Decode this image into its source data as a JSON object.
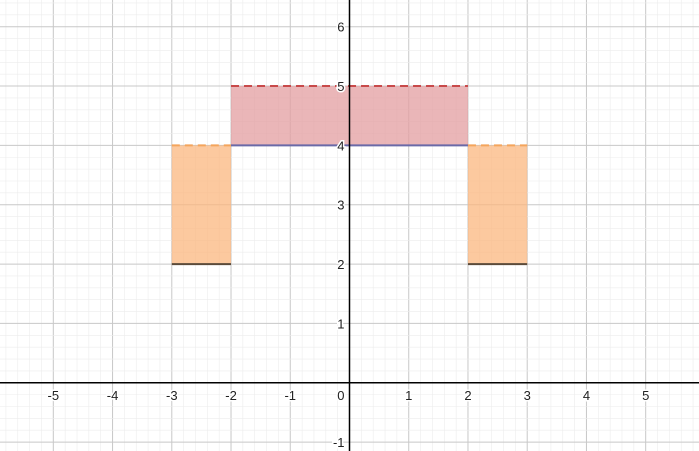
{
  "chart_data": {
    "type": "area",
    "xlim": [
      -5.9,
      5.9
    ],
    "ylim": [
      -1.15,
      6.45
    ],
    "grid": true,
    "x_ticks": [
      -5,
      -4,
      -3,
      -2,
      -1,
      1,
      2,
      3,
      4,
      5
    ],
    "x_tick_labels": [
      "-5",
      "-4",
      "-3",
      "-2",
      "-1",
      "1",
      "2",
      "3",
      "4",
      "5"
    ],
    "y_ticks": [
      -1,
      1,
      2,
      3,
      4,
      5,
      6
    ],
    "y_tick_labels": [
      "-1",
      "1",
      "2",
      "3",
      "4",
      "5",
      "6"
    ],
    "origin_label": "0",
    "regions": [
      {
        "x": [
          -3,
          -2
        ],
        "y_lower": 2,
        "y_upper": 4,
        "fill": "#fbb77f",
        "lower_edge": "solid",
        "lower_color": "#5a4a3a",
        "upper_edge": "dashed",
        "upper_color": "#f4a55c"
      },
      {
        "x": [
          -2,
          2
        ],
        "y_lower": 4,
        "y_upper": 5,
        "fill": "#e39ea0",
        "lower_edge": "solid",
        "lower_color": "#6a6aa8",
        "upper_edge": "dashed",
        "upper_color": "#c84a4a"
      },
      {
        "x": [
          2,
          3
        ],
        "y_lower": 2,
        "y_upper": 4,
        "fill": "#fbb77f",
        "lower_edge": "solid",
        "lower_color": "#5a4a3a",
        "upper_edge": "dashed",
        "upper_color": "#f4a55c"
      }
    ]
  }
}
